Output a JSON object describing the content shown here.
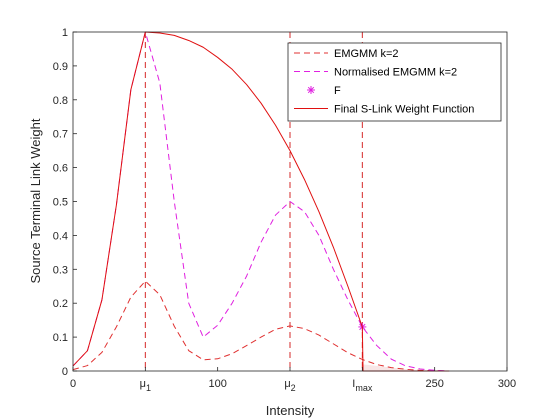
{
  "chart_data": {
    "type": "line",
    "xlabel": "Intensity",
    "ylabel": "Source Terminal Link Weight",
    "xlim": [
      0,
      300
    ],
    "ylim": [
      0,
      1
    ],
    "grid": false,
    "legend_placement": "top-right",
    "xticks": [
      {
        "value": 0,
        "label": "0"
      },
      {
        "value": 50,
        "label": "μ",
        "sub": "1"
      },
      {
        "value": 100,
        "label": "100"
      },
      {
        "value": 150,
        "label": "μ",
        "sub": "2"
      },
      {
        "value": 200,
        "label": "I",
        "sub": "max"
      },
      {
        "value": 250,
        "label": "250"
      },
      {
        "value": 300,
        "label": "300"
      }
    ],
    "yticks": [
      {
        "value": 0,
        "label": "0"
      },
      {
        "value": 0.1,
        "label": "0.1"
      },
      {
        "value": 0.2,
        "label": "0.2"
      },
      {
        "value": 0.3,
        "label": "0.3"
      },
      {
        "value": 0.4,
        "label": "0.4"
      },
      {
        "value": 0.5,
        "label": "0.5"
      },
      {
        "value": 0.6,
        "label": "0.6"
      },
      {
        "value": 0.7,
        "label": "0.7"
      },
      {
        "value": 0.8,
        "label": "0.8"
      },
      {
        "value": 0.9,
        "label": "0.9"
      },
      {
        "value": 1,
        "label": "1"
      }
    ],
    "vlines": [
      {
        "x": 50,
        "color": "#d62828"
      },
      {
        "x": 150,
        "color": "#d62828"
      },
      {
        "x": 200,
        "color": "#d62828"
      }
    ],
    "series": [
      {
        "name": "EMGMM k=2",
        "color": "#e03030",
        "style": "dashed",
        "x": [
          0,
          10,
          20,
          30,
          40,
          50,
          60,
          70,
          80,
          90,
          100,
          110,
          120,
          130,
          140,
          150,
          160,
          170,
          180,
          190,
          200,
          210,
          220,
          230,
          240,
          250,
          260
        ],
        "y": [
          0.004,
          0.016,
          0.055,
          0.13,
          0.218,
          0.265,
          0.225,
          0.132,
          0.06,
          0.033,
          0.036,
          0.051,
          0.075,
          0.1,
          0.123,
          0.133,
          0.125,
          0.106,
          0.08,
          0.054,
          0.034,
          0.019,
          0.01,
          0.005,
          0.002,
          0.001,
          0.0
        ]
      },
      {
        "name": "Normalised EMGMM k=2",
        "color": "#e020e0",
        "style": "dashed",
        "x": [
          0,
          10,
          20,
          30,
          40,
          50,
          60,
          70,
          80,
          90,
          100,
          110,
          120,
          130,
          140,
          150,
          160,
          170,
          180,
          190,
          200,
          210,
          220,
          230,
          240,
          250,
          260
        ],
        "y": [
          0.015,
          0.06,
          0.21,
          0.49,
          0.83,
          1.0,
          0.85,
          0.5,
          0.2,
          0.1,
          0.135,
          0.2,
          0.28,
          0.38,
          0.46,
          0.5,
          0.47,
          0.4,
          0.3,
          0.21,
          0.13,
          0.075,
          0.035,
          0.015,
          0.006,
          0.002,
          0.0
        ]
      },
      {
        "name": "F",
        "color": "#e020e0",
        "style": "marker",
        "x": [
          200
        ],
        "y": [
          0.13
        ]
      },
      {
        "name": "Final S-Link Weight Function",
        "color": "#e01010",
        "style": "solid",
        "x": [
          0,
          10,
          20,
          30,
          40,
          50,
          60,
          70,
          80,
          90,
          100,
          110,
          120,
          130,
          140,
          150,
          160,
          170,
          180,
          190,
          200,
          200.5,
          205,
          210,
          220,
          230,
          240,
          250,
          260
        ],
        "y": [
          0.015,
          0.06,
          0.21,
          0.49,
          0.83,
          1.0,
          0.997,
          0.99,
          0.975,
          0.955,
          0.925,
          0.89,
          0.845,
          0.79,
          0.725,
          0.65,
          0.565,
          0.47,
          0.365,
          0.25,
          0.13,
          0.0,
          0.0,
          0.0,
          0.0,
          0.0,
          0.0,
          0.0,
          0.0
        ]
      }
    ]
  }
}
